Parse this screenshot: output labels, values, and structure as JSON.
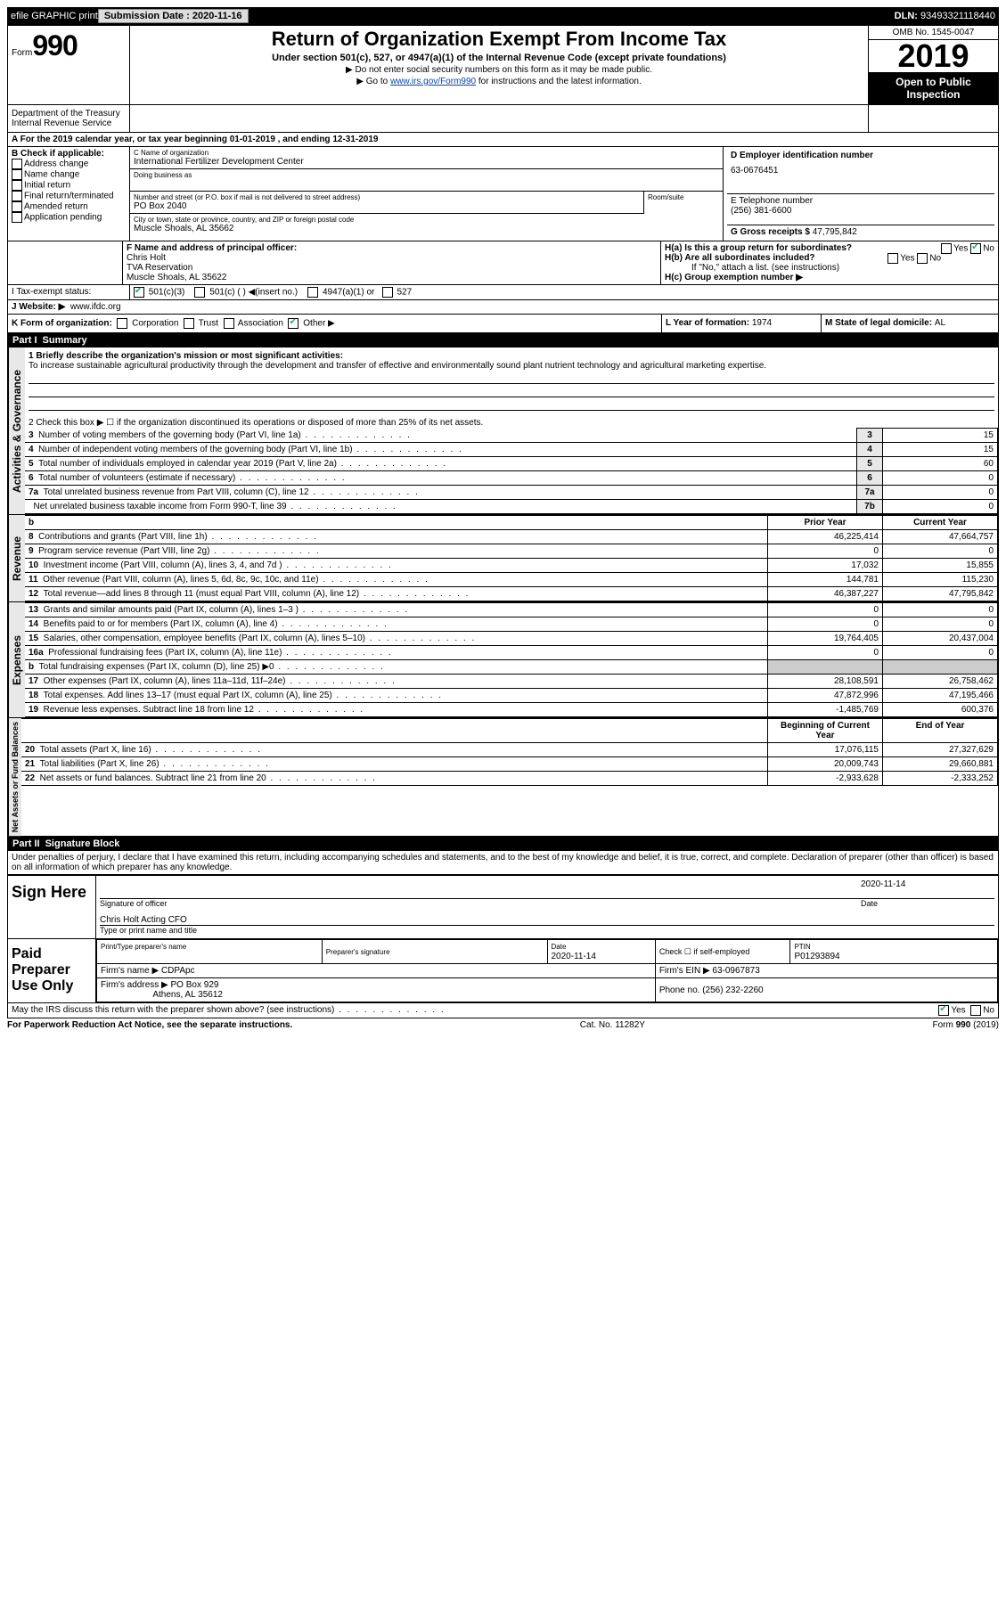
{
  "top_bar": {
    "efile": "efile GRAPHIC print",
    "submission_label": "Submission Date : ",
    "submission_date": "2020-11-16",
    "dln_label": "DLN: ",
    "dln": "93493321118440"
  },
  "header": {
    "form_label": "Form",
    "form_num": "990",
    "dept1": "Department of the Treasury",
    "dept2": "Internal Revenue Service",
    "title": "Return of Organization Exempt From Income Tax",
    "subtitle": "Under section 501(c), 527, or 4947(a)(1) of the Internal Revenue Code (except private foundations)",
    "note1": "▶ Do not enter social security numbers on this form as it may be made public.",
    "note2_prefix": "▶ Go to ",
    "note2_link": "www.irs.gov/Form990",
    "note2_suffix": " for instructions and the latest information.",
    "omb": "OMB No. 1545-0047",
    "year": "2019",
    "open_public": "Open to Public Inspection"
  },
  "section_a": {
    "text": "A For the 2019 calendar year, or tax year beginning 01-01-2019    , and ending 12-31-2019"
  },
  "col_b": {
    "header": "B Check if applicable:",
    "items": [
      "Address change",
      "Name change",
      "Initial return",
      "Final return/terminated",
      "Amended return",
      "Application pending"
    ]
  },
  "col_c": {
    "name_label": "C Name of organization",
    "name": "International Fertilizer Development Center",
    "dba_label": "Doing business as",
    "addr_label": "Number and street (or P.O. box if mail is not delivered to street address)",
    "room_label": "Room/suite",
    "addr": "PO Box 2040",
    "city_label": "City or town, state or province, country, and ZIP or foreign postal code",
    "city": "Muscle Shoals, AL  35662",
    "officer_label": "F Name and address of principal officer:",
    "officer_name": "Chris Holt",
    "officer_addr1": "TVA Reservation",
    "officer_addr2": "Muscle Shoals, AL  35622"
  },
  "col_d": {
    "ein_label": "D Employer identification number",
    "ein": "63-0676451",
    "phone_label": "E Telephone number",
    "phone": "(256) 381-6600",
    "gross_label": "G Gross receipts $ ",
    "gross": "47,795,842"
  },
  "section_h": {
    "ha_label": "H(a)  Is this a group return for subordinates?",
    "hb_label": "H(b)  Are all subordinates included?",
    "hb_note": "If \"No,\" attach a list. (see instructions)",
    "hc_label": "H(c)  Group exemption number ▶"
  },
  "tax_exempt": {
    "label": "Tax-exempt status:",
    "opts": [
      "501(c)(3)",
      "501(c) (  ) ◀(insert no.)",
      "4947(a)(1) or",
      "527"
    ]
  },
  "website": {
    "label": "J  Website: ▶",
    "url": "www.ifdc.org"
  },
  "section_k": {
    "label": "K Form of organization:",
    "opts": [
      "Corporation",
      "Trust",
      "Association",
      "Other ▶"
    ],
    "l_label": "L Year of formation: ",
    "l_val": "1974",
    "m_label": "M State of legal domicile: ",
    "m_val": "AL"
  },
  "part1": {
    "label": "Part I",
    "title": "Summary",
    "line1_label": "1  Briefly describe the organization's mission or most significant activities:",
    "mission": "To increase sustainable agricultural productivity through the development and transfer of effective and environmentally sound plant nutrient technology and agricultural marketing expertise.",
    "line2": "2   Check this box ▶ ☐  if the organization discontinued its operations or disposed of more than 25% of its net assets.",
    "vert_labels": [
      "Activities & Governance",
      "Revenue",
      "Expenses",
      "Net Assets or Fund Balances"
    ],
    "gov_rows": [
      {
        "n": "3",
        "text": "Number of voting members of the governing body (Part VI, line 1a)",
        "box": "3",
        "val": "15"
      },
      {
        "n": "4",
        "text": "Number of independent voting members of the governing body (Part VI, line 1b)",
        "box": "4",
        "val": "15"
      },
      {
        "n": "5",
        "text": "Total number of individuals employed in calendar year 2019 (Part V, line 2a)",
        "box": "5",
        "val": "60"
      },
      {
        "n": "6",
        "text": "Total number of volunteers (estimate if necessary)",
        "box": "6",
        "val": "0"
      },
      {
        "n": "7a",
        "text": "Total unrelated business revenue from Part VIII, column (C), line 12",
        "box": "7a",
        "val": "0"
      },
      {
        "n": "",
        "text": "Net unrelated business taxable income from Form 990-T, line 39",
        "box": "7b",
        "val": "0"
      }
    ],
    "col_headers": {
      "b": "b",
      "prior": "Prior Year",
      "current": "Current Year"
    },
    "rev_rows": [
      {
        "n": "8",
        "text": "Contributions and grants (Part VIII, line 1h)",
        "prior": "46,225,414",
        "cur": "47,664,757"
      },
      {
        "n": "9",
        "text": "Program service revenue (Part VIII, line 2g)",
        "prior": "0",
        "cur": "0"
      },
      {
        "n": "10",
        "text": "Investment income (Part VIII, column (A), lines 3, 4, and 7d )",
        "prior": "17,032",
        "cur": "15,855"
      },
      {
        "n": "11",
        "text": "Other revenue (Part VIII, column (A), lines 5, 6d, 8c, 9c, 10c, and 11e)",
        "prior": "144,781",
        "cur": "115,230"
      },
      {
        "n": "12",
        "text": "Total revenue—add lines 8 through 11 (must equal Part VIII, column (A), line 12)",
        "prior": "46,387,227",
        "cur": "47,795,842"
      }
    ],
    "exp_rows": [
      {
        "n": "13",
        "text": "Grants and similar amounts paid (Part IX, column (A), lines 1–3 )",
        "prior": "0",
        "cur": "0"
      },
      {
        "n": "14",
        "text": "Benefits paid to or for members (Part IX, column (A), line 4)",
        "prior": "0",
        "cur": "0"
      },
      {
        "n": "15",
        "text": "Salaries, other compensation, employee benefits (Part IX, column (A), lines 5–10)",
        "prior": "19,764,405",
        "cur": "20,437,004"
      },
      {
        "n": "16a",
        "text": "Professional fundraising fees (Part IX, column (A), line 11e)",
        "prior": "0",
        "cur": "0"
      },
      {
        "n": "b",
        "text": "Total fundraising expenses (Part IX, column (D), line 25) ▶0",
        "prior": "",
        "cur": "",
        "shaded": true
      },
      {
        "n": "17",
        "text": "Other expenses (Part IX, column (A), lines 11a–11d, 11f–24e)",
        "prior": "28,108,591",
        "cur": "26,758,462"
      },
      {
        "n": "18",
        "text": "Total expenses. Add lines 13–17 (must equal Part IX, column (A), line 25)",
        "prior": "47,872,996",
        "cur": "47,195,466"
      },
      {
        "n": "19",
        "text": "Revenue less expenses. Subtract line 18 from line 12",
        "prior": "-1,485,769",
        "cur": "600,376"
      }
    ],
    "net_headers": {
      "begin": "Beginning of Current Year",
      "end": "End of Year"
    },
    "net_rows": [
      {
        "n": "20",
        "text": "Total assets (Part X, line 16)",
        "prior": "17,076,115",
        "cur": "27,327,629"
      },
      {
        "n": "21",
        "text": "Total liabilities (Part X, line 26)",
        "prior": "20,009,743",
        "cur": "29,660,881"
      },
      {
        "n": "22",
        "text": "Net assets or fund balances. Subtract line 21 from line 20",
        "prior": "-2,933,628",
        "cur": "-2,333,252"
      }
    ]
  },
  "part2": {
    "label": "Part II",
    "title": "Signature Block",
    "penalties": "Under penalties of perjury, I declare that I have examined this return, including accompanying schedules and statements, and to the best of my knowledge and belief, it is true, correct, and complete. Declaration of preparer (other than officer) is based on all information of which preparer has any knowledge.",
    "sign_here": "Sign Here",
    "sig_officer_label": "Signature of officer",
    "sig_date": "2020-11-14",
    "date_label": "Date",
    "officer_name": "Chris Holt Acting CFO",
    "officer_name_label": "Type or print name and title",
    "paid_label": "Paid Preparer Use Only",
    "prep_name_label": "Print/Type preparer's name",
    "prep_sig_label": "Preparer's signature",
    "prep_date": "2020-11-14",
    "check_if": "Check ☐ if self-employed",
    "ptin_label": "PTIN",
    "ptin": "P01293894",
    "firm_name_label": "Firm's name   ▶",
    "firm_name": "CDPApc",
    "firm_ein_label": "Firm's EIN ▶",
    "firm_ein": "63-0967873",
    "firm_addr_label": "Firm's address ▶",
    "firm_addr1": "PO Box 929",
    "firm_addr2": "Athens, AL  35612",
    "firm_phone_label": "Phone no. ",
    "firm_phone": "(256) 232-2260",
    "discuss": "May the IRS discuss this return with the preparer shown above? (see instructions)",
    "yes": "Yes",
    "no": "No"
  },
  "footer": {
    "left": "For Paperwork Reduction Act Notice, see the separate instructions.",
    "mid": "Cat. No. 11282Y",
    "right": "Form 990 (2019)"
  }
}
